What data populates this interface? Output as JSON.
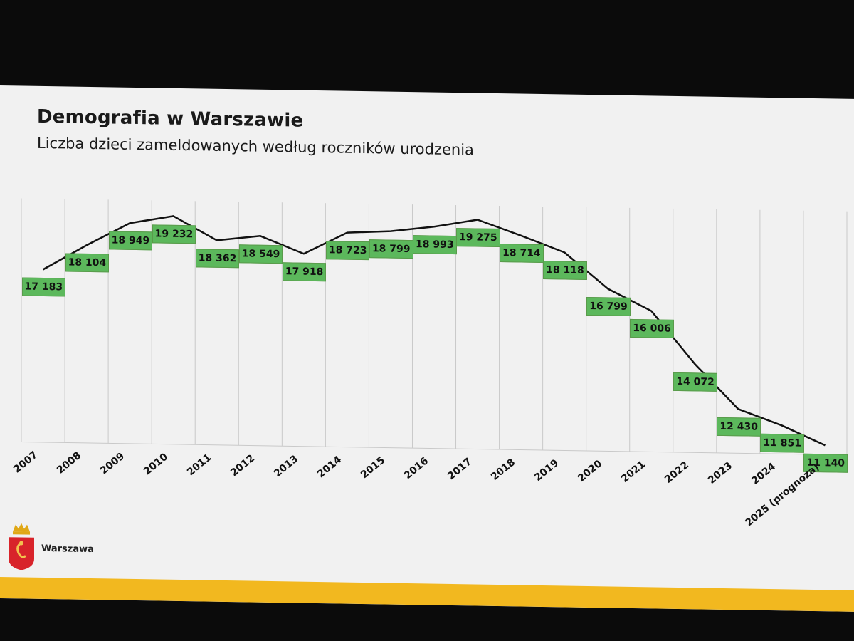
{
  "slide": {
    "title": "Demografia w Warszawie",
    "subtitle": "Liczba dzieci zameldowanych według roczników urodzenia",
    "brand": "Warszawa",
    "accent_color": "#f2b81f",
    "label_color": "#5cb85c"
  },
  "chart_data": {
    "type": "line",
    "categories": [
      "2007",
      "2008",
      "2009",
      "2010",
      "2011",
      "2012",
      "2013",
      "2014",
      "2015",
      "2016",
      "2017",
      "2018",
      "2019",
      "2020",
      "2021",
      "2022",
      "2023",
      "2024",
      "2025 (prognoza)"
    ],
    "series": [
      {
        "values": [
          17183,
          18104,
          18949,
          19232,
          18362,
          18549,
          17918,
          18723,
          18799,
          18993,
          19275,
          18714,
          18118,
          16799,
          16006,
          14072,
          12430,
          11851,
          11140
        ],
        "value_labels": [
          "17 183",
          "18 104",
          "18 949",
          "19 232",
          "18 362",
          "18 549",
          "17 918",
          "18 723",
          "18 799",
          "18 993",
          "19 275",
          "18 714",
          "18 118",
          "16 799",
          "16 006",
          "14 072",
          "12 430",
          "11 851",
          "11 140"
        ]
      }
    ],
    "ylim": [
      10800,
      19800
    ],
    "grid": "vertical",
    "legend": "none"
  }
}
